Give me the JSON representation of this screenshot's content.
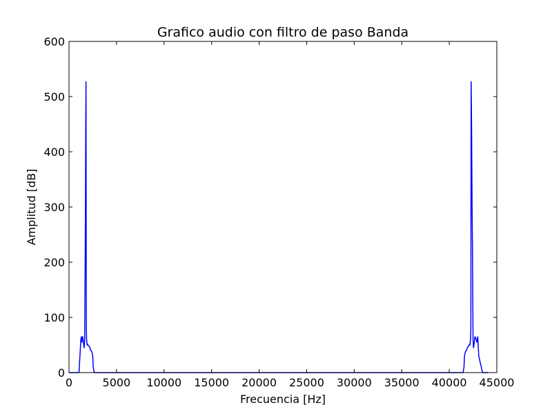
{
  "chart_data": {
    "type": "line",
    "title": "Grafico audio con filtro de paso Banda",
    "xlabel": "Frecuencia [Hz]",
    "ylabel": "Amplitud [dB]",
    "xlim": [
      0,
      45000
    ],
    "ylim": [
      0,
      600
    ],
    "xticks": [
      0,
      5000,
      10000,
      15000,
      20000,
      25000,
      30000,
      35000,
      40000,
      45000
    ],
    "yticks": [
      0,
      100,
      200,
      300,
      400,
      500,
      600
    ],
    "grid": false,
    "legend": "none",
    "series": [
      {
        "color": "#0000ff",
        "x": [
          0,
          1050,
          1150,
          1200,
          1250,
          1300,
          1350,
          1400,
          1450,
          1500,
          1550,
          1600,
          1650,
          1700,
          1730,
          1760,
          1790,
          1820,
          1850,
          1880,
          1910,
          1950,
          2000,
          2100,
          2200,
          2300,
          2400,
          2500,
          2550,
          2650,
          41450,
          41550,
          41600,
          41700,
          41800,
          41900,
          42000,
          42100,
          42150,
          42180,
          42210,
          42240,
          42270,
          42300,
          42350,
          42400,
          42450,
          42500,
          42550,
          42600,
          42650,
          42700,
          42800,
          42900,
          43000,
          43100,
          43500,
          44100
        ],
        "y": [
          0,
          0,
          30,
          45,
          60,
          65,
          55,
          62,
          65,
          58,
          50,
          45,
          60,
          200,
          300,
          440,
          527,
          80,
          60,
          55,
          50,
          52,
          50,
          48,
          45,
          40,
          38,
          30,
          10,
          0,
          0,
          10,
          30,
          38,
          40,
          45,
          48,
          50,
          52,
          50,
          55,
          60,
          80,
          527,
          440,
          300,
          200,
          60,
          45,
          50,
          58,
          65,
          62,
          55,
          65,
          30,
          0,
          0
        ]
      }
    ]
  }
}
